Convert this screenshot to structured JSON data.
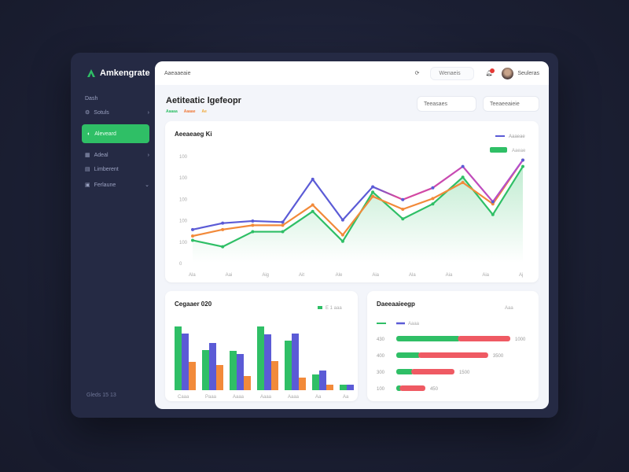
{
  "app": {
    "title": "Amkengrate"
  },
  "sidebar": {
    "section": "Dash",
    "items": [
      {
        "label": "Sotuls",
        "active": false,
        "chevron": true
      },
      {
        "label": "Aleveard",
        "active": true
      },
      {
        "label": "Adeal",
        "chevron": true
      },
      {
        "label": "Limberent"
      },
      {
        "label": "Ferlaune",
        "chevron": true
      }
    ],
    "footer": "Gleds   15  13"
  },
  "header": {
    "search_placeholder": "Aaeaaeaie",
    "dropdown": "Wenaeis",
    "user": "Seuleras",
    "notification_color": "#e53935"
  },
  "page": {
    "title": "Aetiteatic lgefeopr",
    "tags": [
      {
        "label": "Aaaaa",
        "color": "#2fbf66"
      },
      {
        "label": "Aaaae",
        "color": "#f07a3a"
      },
      {
        "label": "Ae",
        "color": "#f0a93a"
      }
    ],
    "buttons": [
      "Teeasaes",
      "Teeaeeaieie"
    ]
  },
  "colors": {
    "accent": "#2fbf66",
    "blue": "#5b5bd6",
    "orange": "#f28a3a",
    "red": "#ef5a63",
    "pink": "#d9479b"
  },
  "chart_data": [
    {
      "type": "line",
      "title": "Aeeaeaeg Ki",
      "legend": [
        "Aaaeae",
        "Aaeae"
      ],
      "legend_placement": "top-right",
      "yticks": [
        "0",
        "100",
        "100",
        "100",
        "100",
        "100"
      ],
      "ylim": [
        0,
        100
      ],
      "xticks": [
        "Ala",
        "Aai",
        "Aig",
        "Ait",
        "Ale",
        "Aia",
        "Ala",
        "Aia",
        "Aia",
        "Aj"
      ],
      "grid": false,
      "series": [
        {
          "color": "#5b5bd6",
          "values": [
            31,
            37,
            39,
            38,
            78,
            40,
            71,
            59,
            70,
            90,
            57,
            96
          ]
        },
        {
          "color": "#f28a3a",
          "values": [
            25,
            31,
            35,
            35,
            54,
            26,
            62,
            50,
            60,
            75,
            55,
            96
          ]
        },
        {
          "color": "#2fbf66",
          "values": [
            21,
            15,
            29,
            29,
            48,
            20,
            66,
            41,
            55,
            80,
            45,
            90
          ],
          "area": true
        }
      ]
    },
    {
      "type": "bar",
      "title": "Cegaaer 020",
      "legend": "E 1 aaa",
      "categories": [
        "Caaa",
        "Paaa",
        "Aaaa",
        "Aaaa",
        "Aaaa",
        "Aa",
        "Aa"
      ],
      "series": [
        {
          "color": "#2fbf66",
          "values": [
            81,
            51,
            50,
            81,
            63,
            20,
            7
          ]
        },
        {
          "color": "#5b5bd6",
          "values": [
            72,
            60,
            46,
            71,
            72,
            25,
            7
          ]
        },
        {
          "color": "#f28a3a",
          "values": [
            36,
            32,
            18,
            37,
            16,
            7,
            0
          ]
        }
      ]
    },
    {
      "type": "bar",
      "orientation": "horizontal",
      "stacked": true,
      "title": "Daeeaaieegp",
      "legend": [
        "Aaa",
        "Aaaa"
      ],
      "categories": [
        "430",
        "400",
        "300",
        "100"
      ],
      "labels": [
        "1000",
        "3500",
        "1500",
        "450"
      ],
      "series": [
        {
          "color": "#2fbf66",
          "values": [
            55,
            21,
            15,
            5
          ]
        },
        {
          "color": "#ef5a63",
          "values": [
            45,
            60,
            37,
            22
          ]
        }
      ]
    }
  ]
}
